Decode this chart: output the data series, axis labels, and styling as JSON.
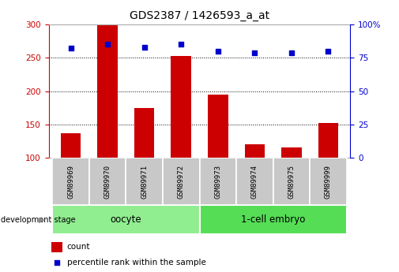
{
  "title": "GDS2387 / 1426593_a_at",
  "samples": [
    "GSM89969",
    "GSM89970",
    "GSM89971",
    "GSM89972",
    "GSM89973",
    "GSM89974",
    "GSM89975",
    "GSM89999"
  ],
  "counts": [
    137,
    300,
    175,
    253,
    195,
    120,
    115,
    152
  ],
  "percentiles": [
    82,
    85,
    83,
    85,
    80,
    79,
    79,
    80
  ],
  "bar_color": "#cc0000",
  "dot_color": "#0000cc",
  "left_ylim": [
    100,
    300
  ],
  "right_ylim": [
    0,
    100
  ],
  "left_yticks": [
    100,
    150,
    200,
    250,
    300
  ],
  "right_yticks": [
    0,
    25,
    50,
    75,
    100
  ],
  "right_yticklabels": [
    "0",
    "25",
    "50",
    "75",
    "100%"
  ],
  "groups": [
    {
      "label": "oocyte",
      "indices": [
        0,
        1,
        2,
        3
      ],
      "color": "#90ee90"
    },
    {
      "label": "1-cell embryo",
      "indices": [
        4,
        5,
        6,
        7
      ],
      "color": "#55dd55"
    }
  ],
  "group_label": "development stage",
  "legend_count_label": "count",
  "legend_percentile_label": "percentile rank within the sample",
  "title_fontsize": 10,
  "axis_label_color_left": "#cc0000",
  "axis_label_color_right": "#0000cc",
  "bar_width": 0.55,
  "label_box_color": "#c8c8c8",
  "fig_width": 5.05,
  "fig_height": 3.45,
  "fig_dpi": 100
}
